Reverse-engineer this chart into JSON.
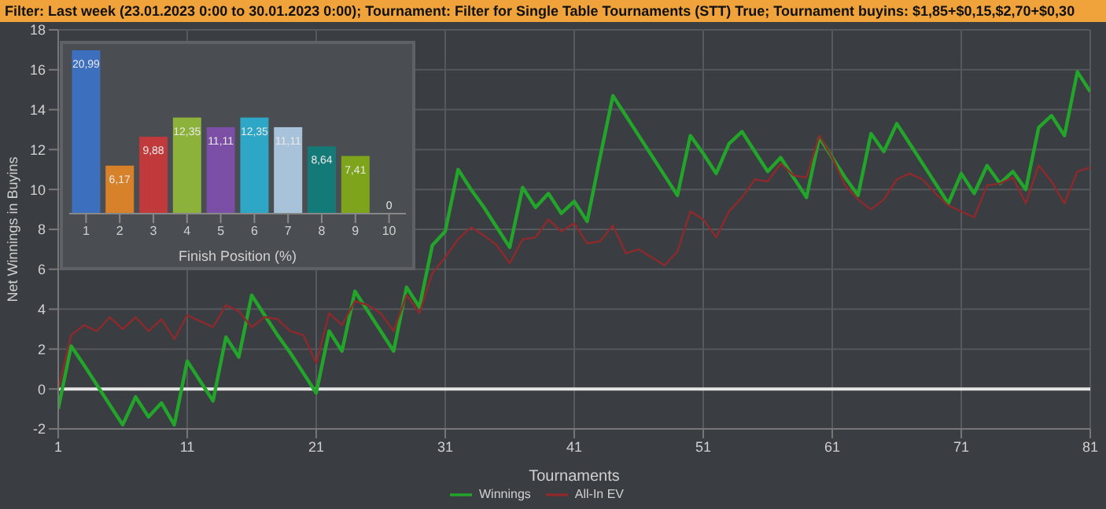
{
  "chart_data": [
    {
      "type": "line",
      "title": "Filter: Last week (23.01.2023 0:00 to 30.01.2023 0:00); Tournament: Filter for Single Table Tournaments (STT) True; Tournament buyins: $1,85+$0,15,$2,70+$0,30",
      "xlabel": "Tournaments",
      "ylabel": "Net Winnings in Buyins",
      "x": [
        1,
        2,
        3,
        4,
        5,
        6,
        7,
        8,
        9,
        10,
        11,
        12,
        13,
        14,
        15,
        16,
        17,
        18,
        19,
        20,
        21,
        22,
        23,
        24,
        25,
        26,
        27,
        28,
        29,
        30,
        31,
        32,
        33,
        34,
        35,
        36,
        37,
        38,
        39,
        40,
        41,
        42,
        43,
        44,
        45,
        46,
        47,
        48,
        49,
        50,
        51,
        52,
        53,
        54,
        55,
        56,
        57,
        58,
        59,
        60,
        61,
        62,
        63,
        64,
        65,
        66,
        67,
        68,
        69,
        70,
        71,
        72,
        73,
        74,
        75,
        76,
        77,
        78,
        79,
        80,
        81
      ],
      "series": [
        {
          "name": "Winnings",
          "color": "#22a52a",
          "values": [
            -1.0,
            2.15,
            1.2,
            0.2,
            -0.8,
            -1.8,
            -0.4,
            -1.4,
            -0.7,
            -1.8,
            1.4,
            0.4,
            -0.6,
            2.6,
            1.6,
            4.7,
            3.7,
            2.7,
            1.8,
            0.8,
            -0.2,
            2.9,
            1.9,
            4.9,
            3.9,
            2.9,
            1.9,
            5.1,
            4.1,
            7.2,
            7.9,
            11.0,
            10.0,
            9.1,
            8.1,
            7.1,
            10.1,
            9.1,
            9.8,
            8.8,
            9.4,
            8.4,
            11.6,
            14.7,
            13.7,
            12.7,
            11.7,
            10.7,
            9.7,
            12.7,
            11.8,
            10.8,
            12.3,
            12.9,
            11.9,
            10.9,
            11.6,
            10.6,
            9.6,
            12.6,
            11.6,
            10.6,
            9.7,
            12.8,
            11.9,
            13.3,
            12.3,
            11.3,
            10.3,
            9.3,
            10.8,
            9.8,
            11.2,
            10.3,
            10.9,
            10.0,
            13.1,
            13.7,
            12.7,
            15.9,
            14.9
          ]
        },
        {
          "name": "All-In EV",
          "color": "#8e2a2c",
          "values": [
            0.0,
            2.7,
            3.2,
            2.9,
            3.6,
            3.0,
            3.6,
            2.9,
            3.5,
            2.5,
            3.7,
            3.4,
            3.1,
            4.2,
            3.9,
            3.1,
            3.6,
            3.5,
            2.9,
            2.7,
            1.3,
            3.8,
            3.2,
            4.4,
            4.2,
            3.8,
            2.9,
            4.7,
            3.8,
            5.8,
            6.6,
            7.5,
            8.1,
            7.7,
            7.2,
            6.3,
            7.5,
            7.6,
            8.5,
            7.9,
            8.3,
            7.3,
            7.4,
            8.2,
            6.8,
            7.0,
            6.6,
            6.2,
            6.9,
            8.9,
            8.5,
            7.6,
            8.9,
            9.6,
            10.5,
            10.4,
            11.3,
            10.7,
            10.6,
            12.7,
            11.6,
            10.2,
            9.5,
            9.0,
            9.5,
            10.5,
            10.8,
            10.5,
            9.8,
            9.2,
            8.9,
            8.6,
            10.2,
            10.3,
            10.6,
            9.3,
            11.2,
            10.4,
            9.3,
            10.9,
            11.1
          ]
        }
      ],
      "xlim": [
        1,
        81
      ],
      "xticks": [
        1,
        11,
        21,
        31,
        41,
        51,
        61,
        71,
        81
      ],
      "ylim": [
        -2,
        18
      ],
      "yticks": [
        -2,
        0,
        2,
        4,
        6,
        8,
        10,
        12,
        14,
        16,
        18
      ],
      "ref_lines": [
        {
          "axis": "y",
          "value": 0,
          "color": "#e6e6e6"
        }
      ],
      "grid": true,
      "legend": "bottom",
      "marker": "none",
      "line_style": "solid"
    },
    {
      "type": "bar",
      "xlabel": "Finish Position (%)",
      "categories": [
        "1",
        "2",
        "3",
        "4",
        "5",
        "6",
        "7",
        "8",
        "9",
        "10"
      ],
      "values": [
        20.99,
        6.17,
        9.88,
        12.35,
        11.11,
        12.35,
        11.11,
        8.64,
        7.41,
        0
      ],
      "value_labels": [
        "20,99",
        "6,17",
        "9,88",
        "12,35",
        "11,11",
        "12,35",
        "11,11",
        "8,64",
        "7,41",
        "0"
      ],
      "colors": [
        "#3d6fbf",
        "#d7822a",
        "#c0393b",
        "#8cb23c",
        "#7b4fa6",
        "#2ea6c6",
        "#a8c2da",
        "#147a78",
        "#7ea41c",
        null
      ]
    }
  ]
}
